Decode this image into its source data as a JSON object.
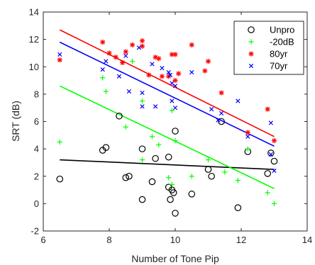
{
  "chart_data": {
    "type": "scatter",
    "title": "",
    "xlabel": "Number of Tone Pip",
    "ylabel": "SRT (dB)",
    "xlim": [
      6,
      14
    ],
    "ylim": [
      -2,
      14
    ],
    "xticks": [
      6,
      8,
      10,
      12,
      14
    ],
    "yticks": [
      -2,
      0,
      2,
      4,
      6,
      8,
      10,
      12,
      14
    ],
    "grid": false,
    "legend_position": "top-right",
    "series": [
      {
        "name": "Unpro",
        "marker": "circle",
        "color": "#000000",
        "points": [
          [
            6.5,
            1.8
          ],
          [
            7.8,
            3.9
          ],
          [
            7.9,
            4.1
          ],
          [
            8.3,
            6.4
          ],
          [
            8.5,
            1.9
          ],
          [
            8.6,
            2.0
          ],
          [
            9.0,
            0.3
          ],
          [
            9.0,
            4.0
          ],
          [
            9.3,
            1.6
          ],
          [
            9.4,
            3.3
          ],
          [
            9.8,
            3.4
          ],
          [
            9.8,
            1.2
          ],
          [
            9.85,
            0.3
          ],
          [
            9.9,
            1.0
          ],
          [
            9.95,
            0.8
          ],
          [
            10.0,
            5.3
          ],
          [
            10.0,
            -0.7
          ],
          [
            10.5,
            0.7
          ],
          [
            11.0,
            2.5
          ],
          [
            11.1,
            2.0
          ],
          [
            11.4,
            6.0
          ],
          [
            11.9,
            -0.3
          ],
          [
            12.2,
            3.8
          ],
          [
            12.8,
            2.2
          ],
          [
            12.9,
            3.7
          ],
          [
            13.0,
            3.1
          ]
        ],
        "fit": [
          [
            6.5,
            3.2
          ],
          [
            13.0,
            2.5
          ]
        ]
      },
      {
        "name": "-20dB",
        "marker": "plus",
        "color": "#00ff00",
        "points": [
          [
            6.5,
            4.5
          ],
          [
            7.8,
            9.2
          ],
          [
            7.9,
            8.2
          ],
          [
            8.5,
            5.6
          ],
          [
            8.7,
            10.4
          ],
          [
            9.0,
            3.2
          ],
          [
            9.0,
            7.5
          ],
          [
            9.3,
            4.9
          ],
          [
            9.5,
            4.3
          ],
          [
            9.8,
            1.9
          ],
          [
            9.9,
            6.8
          ],
          [
            9.9,
            1.4
          ],
          [
            10.0,
            4.6
          ],
          [
            10.5,
            2.0
          ],
          [
            11.0,
            3.2
          ],
          [
            11.5,
            2.3
          ],
          [
            11.9,
            1.7
          ],
          [
            12.2,
            4.0
          ],
          [
            12.8,
            0.8
          ],
          [
            13.0,
            0.0
          ]
        ],
        "fit": [
          [
            6.5,
            8.6
          ],
          [
            13.0,
            1.1
          ]
        ]
      },
      {
        "name": "80yr",
        "marker": "asterisk",
        "color": "#ff0000",
        "points": [
          [
            6.5,
            10.5
          ],
          [
            7.8,
            11.8
          ],
          [
            8.0,
            11.0
          ],
          [
            8.2,
            10.7
          ],
          [
            8.4,
            10.3
          ],
          [
            8.5,
            11.1
          ],
          [
            8.7,
            11.6
          ],
          [
            9.0,
            11.5
          ],
          [
            9.0,
            11.9
          ],
          [
            9.2,
            9.4
          ],
          [
            9.4,
            10.7
          ],
          [
            9.5,
            10.6
          ],
          [
            9.6,
            9.3
          ],
          [
            9.8,
            9.3
          ],
          [
            9.9,
            10.9
          ],
          [
            10.0,
            10.9
          ],
          [
            10.0,
            9.0
          ],
          [
            10.1,
            9.5
          ],
          [
            10.5,
            11.6
          ],
          [
            10.9,
            9.7
          ],
          [
            11.0,
            10.4
          ],
          [
            11.4,
            8.1
          ],
          [
            12.2,
            5.2
          ],
          [
            12.8,
            6.9
          ],
          [
            13.0,
            4.6
          ]
        ],
        "fit": [
          [
            6.5,
            12.7
          ],
          [
            13.0,
            4.9
          ]
        ]
      },
      {
        "name": "70yr",
        "marker": "x",
        "color": "#0000ff",
        "points": [
          [
            6.5,
            10.9
          ],
          [
            7.8,
            9.8
          ],
          [
            7.9,
            10.4
          ],
          [
            8.3,
            9.3
          ],
          [
            8.5,
            10.8
          ],
          [
            8.6,
            8.2
          ],
          [
            8.9,
            11.4
          ],
          [
            9.0,
            8.1
          ],
          [
            9.0,
            7.1
          ],
          [
            9.3,
            10.2
          ],
          [
            9.4,
            7.1
          ],
          [
            9.6,
            9.9
          ],
          [
            9.8,
            9.6
          ],
          [
            9.85,
            9.4
          ],
          [
            9.9,
            8.8
          ],
          [
            9.9,
            7.5
          ],
          [
            10.0,
            8.6
          ],
          [
            10.0,
            7.0
          ],
          [
            10.5,
            9.6
          ],
          [
            11.1,
            6.9
          ],
          [
            11.3,
            6.1
          ],
          [
            11.4,
            6.6
          ],
          [
            11.9,
            7.5
          ],
          [
            12.2,
            4.9
          ],
          [
            12.9,
            5.9
          ],
          [
            12.9,
            3.6
          ],
          [
            13.0,
            2.4
          ]
        ],
        "fit": [
          [
            6.5,
            11.8
          ],
          [
            13.0,
            4.2
          ]
        ]
      }
    ]
  }
}
